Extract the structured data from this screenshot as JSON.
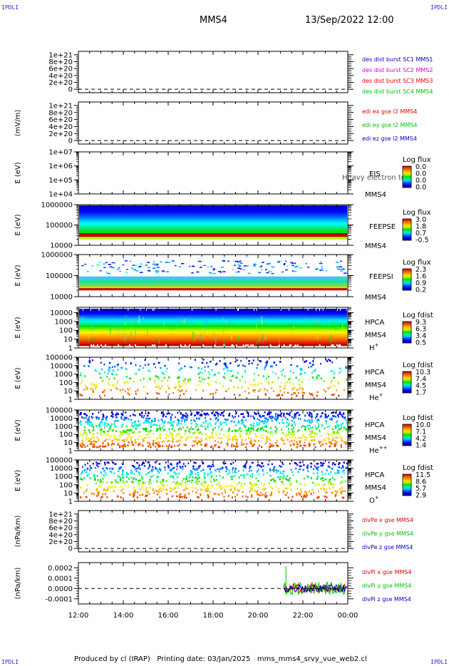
{
  "corners": {
    "tl": "IPDLI",
    "tr": "IPDLI",
    "bl": "IPDLI",
    "br": "IPDLI"
  },
  "header": {
    "spacecraft": "MMS4",
    "datetime": "13/Sep/2022 12:00"
  },
  "footer": {
    "text": "Produced by cl (IRAP)   Printing date: 03/Jan/2025   mms_mms4_srvy_vue_web2.cl"
  },
  "time_axis": {
    "start": "12:00",
    "end": "00:00",
    "ticks": [
      "12:00",
      "14:00",
      "16:00",
      "18:00",
      "20:00",
      "22:00",
      "00:00"
    ],
    "tick_hours": [
      0,
      2,
      4,
      6,
      8,
      10,
      12
    ]
  },
  "colors": {
    "red": "#e00000",
    "green": "#00c000",
    "blue": "#0000c0",
    "magenta": "#d000d0"
  },
  "chart_data": [
    {
      "type": "line",
      "ylabel": "",
      "yticks": [
        "1e+21",
        "8e+20",
        "6e+20",
        "4e+20",
        "2e+20",
        "0"
      ],
      "ytick_values": [
        1e+21,
        8e+20,
        6e+20,
        4e+20,
        2e+20,
        0
      ],
      "ylim": [
        -1e+20,
        1.1e+21
      ],
      "zero_line": true,
      "legend": [
        {
          "text": "des dist burst SC1 MMS1",
          "color": "#0000c0"
        },
        {
          "text": "des dist burst SC2 MMS2",
          "color": "#d000d0"
        },
        {
          "text": "des dist burst SC3 MMS3",
          "color": "#e00000"
        },
        {
          "text": "des dist burst SC4 MMS4",
          "color": "#00c000"
        }
      ]
    },
    {
      "type": "line",
      "ylabel": "(mV/m)",
      "yticks": [
        "1e+21",
        "8e+20",
        "6e+20",
        "4e+20",
        "2e+20",
        "0"
      ],
      "ytick_values": [
        1e+21,
        8e+20,
        6e+20,
        4e+20,
        2e+20,
        0
      ],
      "ylim": [
        -1e+20,
        1.1e+21
      ],
      "zero_line": true,
      "legend": [
        {
          "text": "edi ex gse l2 MMS4",
          "color": "#e00000"
        },
        {
          "text": "edi ey gse l2 MMS4",
          "color": "#00c000"
        },
        {
          "text": "edi ez gse l2 MMS4",
          "color": "#0000c0"
        }
      ]
    },
    {
      "type": "heatmap",
      "variant": "empty",
      "ylabel": "E (eV)",
      "log": true,
      "yticks": [
        "1e+07",
        "1e+06",
        "1e+05",
        "1e+04"
      ],
      "ytick_values": [
        10000000.0,
        1000000.0,
        100000.0,
        10000.0
      ],
      "ylim": [
        10000.0,
        10000000.0
      ],
      "labels": [
        "EIS",
        "MMS4"
      ],
      "overlay": "Heavy electron tof",
      "cbar_title": "Log flux",
      "cbar_values": [
        "0.0",
        "0.0",
        "0.0",
        "0.0"
      ]
    },
    {
      "type": "heatmap",
      "variant": "feepse",
      "ylabel": "E (eV)",
      "log": true,
      "yticks": [
        "1000000",
        "100000",
        "10000"
      ],
      "ytick_values": [
        1000000.0,
        100000.0,
        10000.0
      ],
      "ylim": [
        10000.0,
        1000000.0
      ],
      "labels": [
        "FEEPSE",
        "MMS4"
      ],
      "cbar_title": "Log flux",
      "cbar_values": [
        "3.0",
        "1.8",
        "0.7",
        "-0.5"
      ]
    },
    {
      "type": "heatmap",
      "variant": "feepsi",
      "ylabel": "E (eV)",
      "log": true,
      "yticks": [
        "1000000",
        "100000",
        "10000"
      ],
      "ytick_values": [
        1000000.0,
        100000.0,
        10000.0
      ],
      "ylim": [
        10000.0,
        1000000.0
      ],
      "labels": [
        "FEEPSI",
        "MMS4"
      ],
      "cbar_title": "Log flux",
      "cbar_values": [
        "2.3",
        "1.6",
        "0.9",
        "0.2"
      ]
    },
    {
      "type": "heatmap",
      "variant": "hplus",
      "ylabel": "E (eV)",
      "log": true,
      "yticks": [
        "10000",
        "1000",
        "100",
        "10",
        "1"
      ],
      "ytick_values": [
        10000.0,
        1000.0,
        100,
        10,
        1
      ],
      "ylim": [
        1,
        40000.0
      ],
      "labels": [
        "HPCA",
        "MMS4",
        "H+"
      ],
      "cbar_title": "Log fdist",
      "cbar_values": [
        "9.3",
        "6.3",
        "3.4",
        "0.5"
      ]
    },
    {
      "type": "heatmap",
      "variant": "heplus",
      "ylabel": "E (eV)",
      "log": true,
      "yticks": [
        "100000",
        "10000",
        "1000",
        "100",
        "10",
        "1"
      ],
      "ytick_values": [
        100000.0,
        10000.0,
        1000.0,
        100,
        10,
        1
      ],
      "ylim": [
        1,
        100000.0
      ],
      "labels": [
        "HPCA",
        "MMS4",
        "He+"
      ],
      "cbar_title": "Log fdist",
      "cbar_values": [
        "10.3",
        "7.4",
        "4.5",
        "1.7"
      ]
    },
    {
      "type": "heatmap",
      "variant": "hepp",
      "ylabel": "E (eV)",
      "log": true,
      "yticks": [
        "100000",
        "10000",
        "1000",
        "100",
        "10",
        "1"
      ],
      "ytick_values": [
        100000.0,
        10000.0,
        1000.0,
        100,
        10,
        1
      ],
      "ylim": [
        1,
        100000.0
      ],
      "labels": [
        "HPCA",
        "MMS4",
        "He++"
      ],
      "cbar_title": "Log fdist",
      "cbar_values": [
        "10.0",
        "7.1",
        "4.2",
        "1.4"
      ]
    },
    {
      "type": "heatmap",
      "variant": "oplus",
      "ylabel": "E (eV)",
      "log": true,
      "yticks": [
        "100000",
        "10000",
        "1000",
        "100",
        "10",
        "1"
      ],
      "ytick_values": [
        100000.0,
        10000.0,
        1000.0,
        100,
        10,
        1
      ],
      "ylim": [
        1,
        100000.0
      ],
      "labels": [
        "HPCA",
        "MMS4",
        "O+"
      ],
      "cbar_title": "Log fdist",
      "cbar_values": [
        "11.5",
        "8.6",
        "5.7",
        "2.9"
      ]
    },
    {
      "type": "line",
      "ylabel": "(nPa/km)",
      "yticks": [
        "1e+21",
        "8e+20",
        "6e+20",
        "4e+20",
        "2e+20",
        "0"
      ],
      "ytick_values": [
        1e+21,
        8e+20,
        6e+20,
        4e+20,
        2e+20,
        0
      ],
      "ylim": [
        -1e+20,
        1.1e+21
      ],
      "zero_line": true,
      "legend": [
        {
          "text": "divPe x gse MMS4",
          "color": "#e00000"
        },
        {
          "text": "divPe y gse MMS4",
          "color": "#00c000"
        },
        {
          "text": "divPe z gse MMS4",
          "color": "#0000c0"
        }
      ]
    },
    {
      "type": "line",
      "variant": "divpi",
      "ylabel": "(nPa/km)",
      "yticks": [
        "0.0002",
        "0.0001",
        "0.0000",
        "-0.0001"
      ],
      "ytick_values": [
        0.0002,
        0.0001,
        0,
        -0.0001
      ],
      "ylim": [
        -0.00015,
        0.00025
      ],
      "zero_line": true,
      "data_start_hour": 9.15,
      "legend": [
        {
          "text": "divPi x gse MMS4",
          "color": "#e00000"
        },
        {
          "text": "divPi y gse MMS4",
          "color": "#00c000"
        },
        {
          "text": "divPi z gse MMS4",
          "color": "#0000c0"
        }
      ]
    }
  ]
}
